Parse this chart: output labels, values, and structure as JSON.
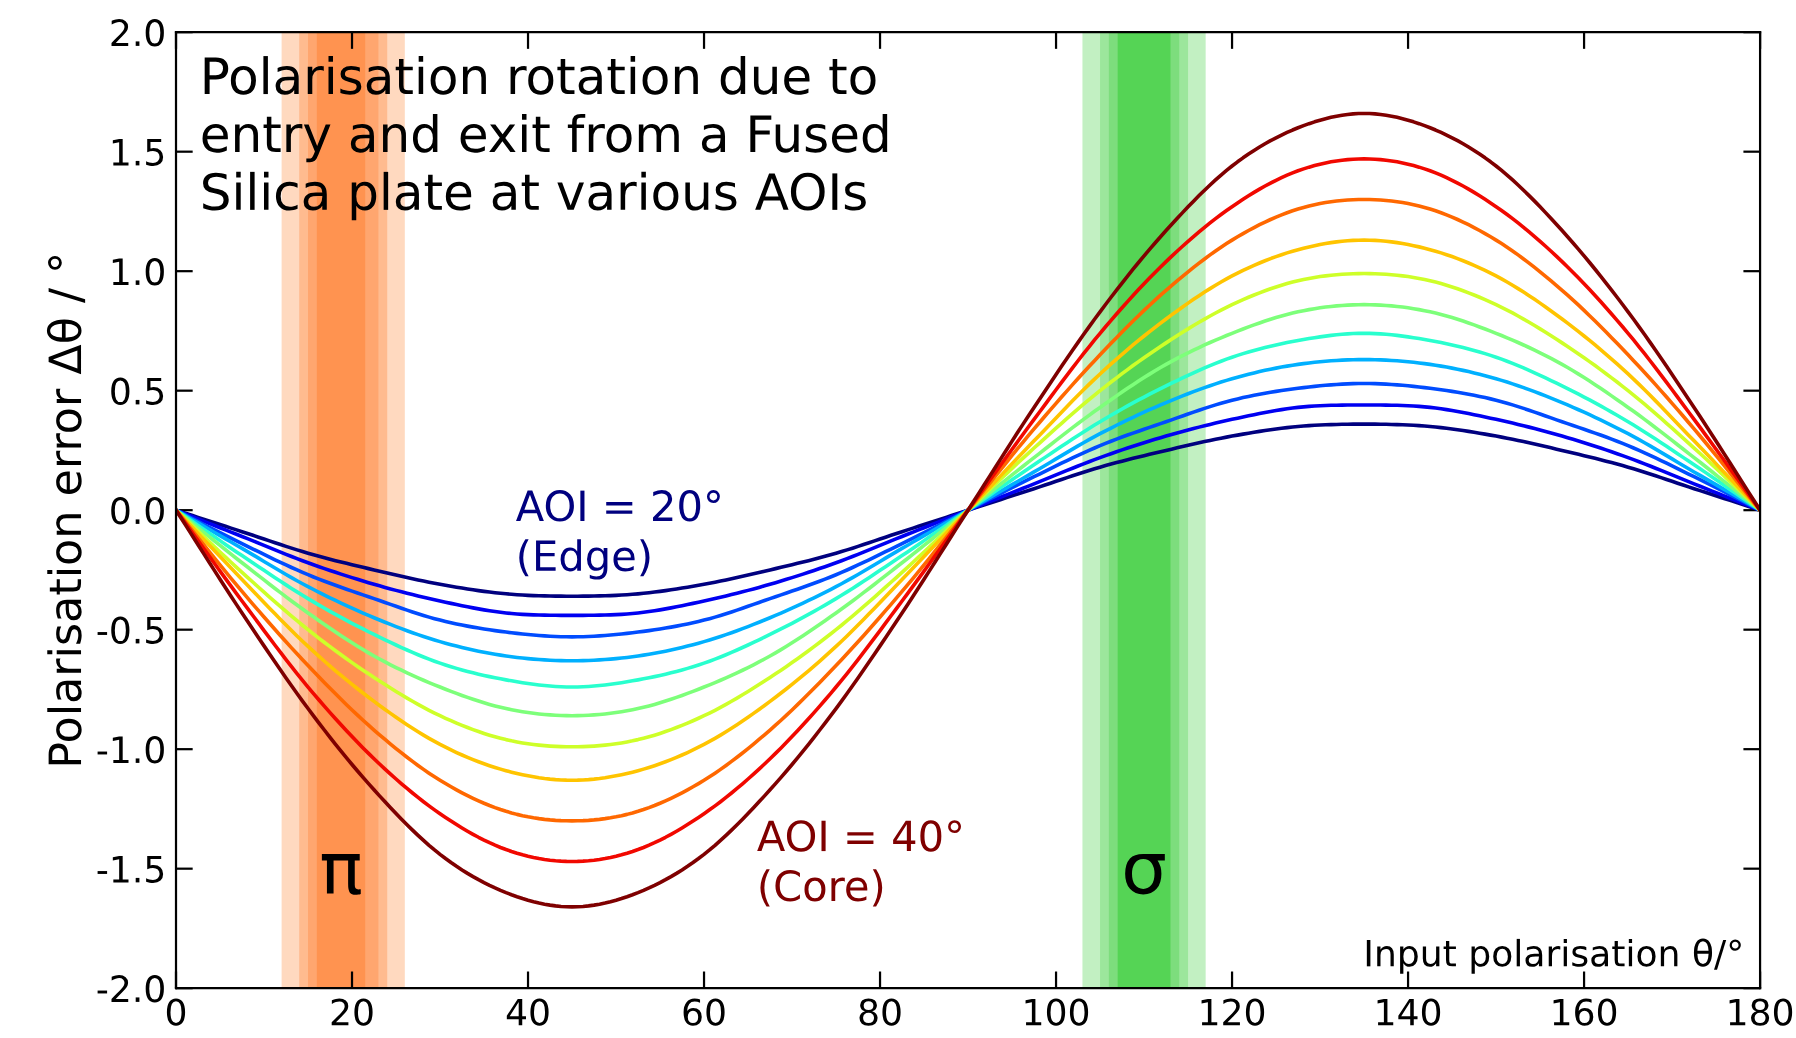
{
  "chart_data": {
    "type": "line",
    "title": "Polarisation rotation due to\nentry and exit from a Fused\nSilica plate at various AOIs",
    "xlabel": "Input polarisation θ/°",
    "ylabel": "Polarisation error Δθ / °",
    "x": [
      0,
      7.5,
      15,
      22.5,
      30,
      37.5,
      45,
      52.5,
      60,
      67.5,
      75,
      82.5,
      90,
      97.5,
      105,
      112.5,
      120,
      127.5,
      135,
      142.5,
      150,
      157.5,
      165,
      172.5,
      180
    ],
    "series": [
      {
        "name": "AOI = 20°\n(Edge)",
        "color": "#00007f",
        "values": [
          0,
          -0.09,
          -0.18,
          -0.25,
          -0.31,
          -0.35,
          -0.36,
          -0.35,
          -0.31,
          -0.25,
          -0.18,
          -0.09,
          0,
          0.09,
          0.18,
          0.25,
          0.31,
          0.35,
          0.36,
          0.35,
          0.31,
          0.25,
          0.18,
          0.09,
          0
        ]
      },
      {
        "color": "#0000f1",
        "values": [
          0,
          -0.11,
          -0.22,
          -0.31,
          -0.38,
          -0.43,
          -0.44,
          -0.43,
          -0.38,
          -0.31,
          -0.22,
          -0.11,
          0,
          0.11,
          0.22,
          0.31,
          0.38,
          0.43,
          0.44,
          0.43,
          0.38,
          0.31,
          0.22,
          0.11,
          0
        ]
      },
      {
        "color": "#004cff",
        "values": [
          0,
          -0.14,
          -0.27,
          -0.37,
          -0.46,
          -0.51,
          -0.53,
          -0.51,
          -0.46,
          -0.37,
          -0.27,
          -0.14,
          0,
          0.14,
          0.27,
          0.37,
          0.46,
          0.51,
          0.53,
          0.51,
          0.46,
          0.37,
          0.27,
          0.14,
          0
        ]
      },
      {
        "color": "#00b0ff",
        "values": [
          0,
          -0.16,
          -0.32,
          -0.45,
          -0.55,
          -0.61,
          -0.63,
          -0.61,
          -0.55,
          -0.45,
          -0.32,
          -0.16,
          0,
          0.16,
          0.32,
          0.45,
          0.55,
          0.61,
          0.63,
          0.61,
          0.55,
          0.45,
          0.32,
          0.16,
          0
        ]
      },
      {
        "color": "#29ffce",
        "values": [
          0,
          -0.19,
          -0.37,
          -0.52,
          -0.64,
          -0.71,
          -0.74,
          -0.71,
          -0.64,
          -0.52,
          -0.37,
          -0.19,
          0,
          0.19,
          0.37,
          0.52,
          0.64,
          0.71,
          0.74,
          0.71,
          0.64,
          0.52,
          0.37,
          0.19,
          0
        ]
      },
      {
        "color": "#7dff7a",
        "values": [
          0,
          -0.22,
          -0.43,
          -0.61,
          -0.74,
          -0.83,
          -0.86,
          -0.83,
          -0.74,
          -0.61,
          -0.43,
          -0.22,
          0,
          0.22,
          0.43,
          0.61,
          0.74,
          0.83,
          0.86,
          0.83,
          0.74,
          0.61,
          0.43,
          0.22,
          0
        ]
      },
      {
        "color": "#ceff29",
        "values": [
          0,
          -0.26,
          -0.5,
          -0.7,
          -0.86,
          -0.96,
          -0.99,
          -0.96,
          -0.86,
          -0.7,
          -0.5,
          -0.26,
          0,
          0.26,
          0.5,
          0.7,
          0.86,
          0.96,
          0.99,
          0.96,
          0.86,
          0.7,
          0.5,
          0.26,
          0
        ]
      },
      {
        "color": "#ffc400",
        "values": [
          0,
          -0.29,
          -0.57,
          -0.8,
          -0.98,
          -1.09,
          -1.13,
          -1.09,
          -0.98,
          -0.8,
          -0.57,
          -0.29,
          0,
          0.29,
          0.57,
          0.8,
          0.98,
          1.09,
          1.13,
          1.09,
          0.98,
          0.8,
          0.57,
          0.29,
          0
        ]
      },
      {
        "color": "#ff6800",
        "values": [
          0,
          -0.34,
          -0.65,
          -0.92,
          -1.13,
          -1.26,
          -1.3,
          -1.26,
          -1.13,
          -0.92,
          -0.65,
          -0.34,
          0,
          0.34,
          0.65,
          0.92,
          1.13,
          1.26,
          1.3,
          1.26,
          1.13,
          0.92,
          0.65,
          0.34,
          0
        ]
      },
      {
        "color": "#f10800",
        "values": [
          0,
          -0.38,
          -0.74,
          -1.04,
          -1.27,
          -1.42,
          -1.47,
          -1.42,
          -1.27,
          -1.04,
          -0.74,
          -0.38,
          0,
          0.38,
          0.74,
          1.04,
          1.27,
          1.42,
          1.47,
          1.42,
          1.27,
          1.04,
          0.74,
          0.38,
          0
        ]
      },
      {
        "name": "AOI = 40°\n(Core)",
        "color": "#7f0000",
        "values": [
          0,
          -0.43,
          -0.83,
          -1.17,
          -1.44,
          -1.6,
          -1.66,
          -1.6,
          -1.44,
          -1.17,
          -0.83,
          -0.43,
          0,
          0.43,
          0.83,
          1.17,
          1.44,
          1.6,
          1.66,
          1.6,
          1.44,
          1.17,
          0.83,
          0.43,
          0
        ]
      }
    ],
    "bands": [
      {
        "axis": "x",
        "from": 12,
        "to": 26,
        "color": "#ffd9bf"
      },
      {
        "axis": "x",
        "from": 14,
        "to": 24,
        "color": "#ffbb8f"
      },
      {
        "axis": "x",
        "from": 15,
        "to": 23,
        "color": "#ffa66f"
      },
      {
        "axis": "x",
        "from": 16,
        "to": 21.5,
        "color": "#ff9350",
        "label": "π"
      },
      {
        "axis": "x",
        "from": 103,
        "to": 117,
        "color": "#c2f0c2"
      },
      {
        "axis": "x",
        "from": 105,
        "to": 115,
        "color": "#9ce69c"
      },
      {
        "axis": "x",
        "from": 106,
        "to": 114,
        "color": "#7ddd7d"
      },
      {
        "axis": "x",
        "from": 107,
        "to": 113,
        "color": "#55d455",
        "label": "σ"
      }
    ],
    "xlim": [
      0,
      180
    ],
    "ylim": [
      -2.0,
      2.0
    ],
    "xticks": [
      0,
      20,
      40,
      60,
      80,
      100,
      120,
      140,
      160,
      180
    ],
    "yticks": [
      {
        "value": -2,
        "label": "-2.0"
      },
      -1.5,
      {
        "value": -1,
        "label": "-1.0"
      },
      -0.5,
      {
        "value": 0,
        "label": "0.0"
      },
      0.5,
      {
        "value": 1,
        "label": "1.0"
      },
      1.5,
      {
        "value": 2,
        "label": "2.0"
      }
    ],
    "grid": false,
    "legend": false,
    "marker": "none",
    "line_style": "solid"
  }
}
